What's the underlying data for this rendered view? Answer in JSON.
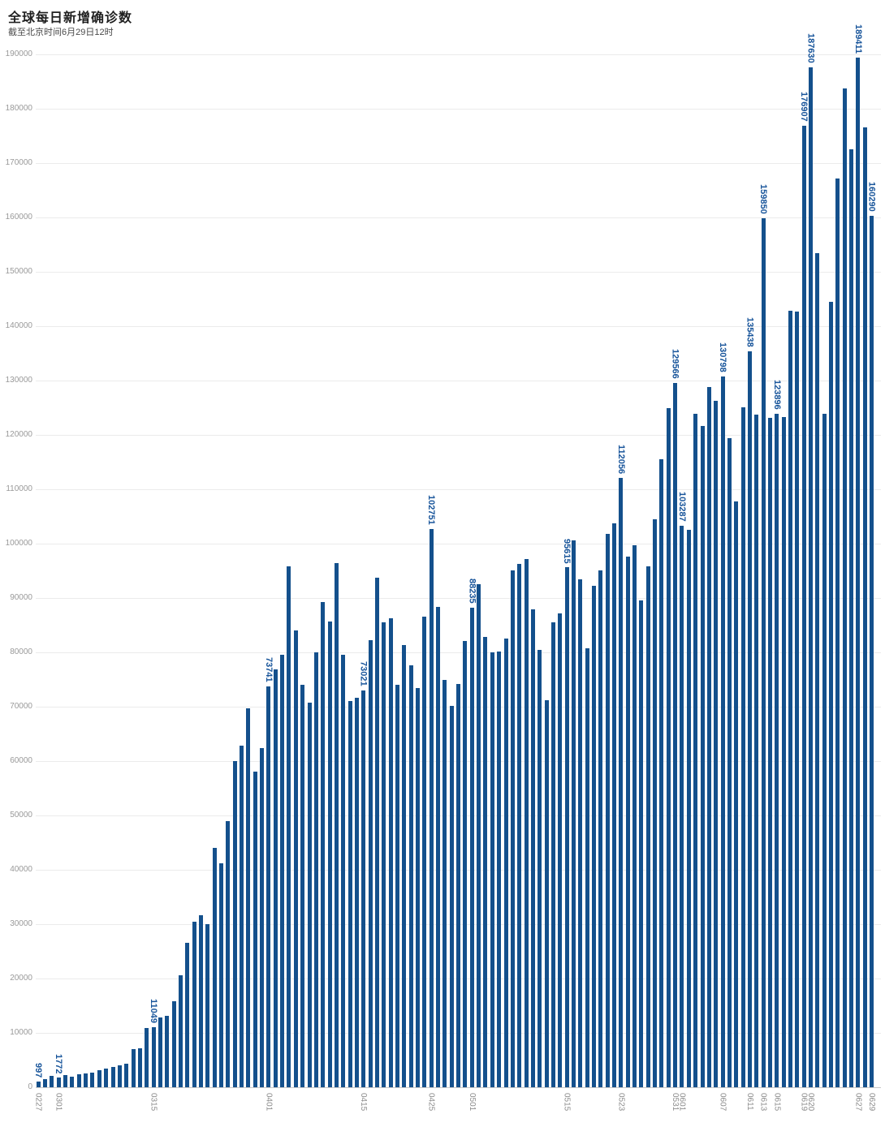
{
  "header": {
    "title": "全球每日新增确诊数",
    "subtitle": "截至北京时间6月29日12时"
  },
  "colors": {
    "bar": "#14508C",
    "value_label": "#17549A",
    "axis_text": "#999999",
    "x_tick_text": "#8C8C8C",
    "gridline": "#EBEBEB",
    "axis_line": "#C8C8C8",
    "title": "#1F1F1F",
    "subtitle": "#4A4A4A",
    "background": "#FFFFFF"
  },
  "chart_data": {
    "type": "bar",
    "title": "全球每日新增确诊数",
    "subtitle": "截至北京时间6月29日12时",
    "xlabel": "",
    "ylabel": "",
    "ylim": [
      0,
      190000
    ],
    "y_ticks": [
      0,
      10000,
      20000,
      30000,
      40000,
      50000,
      60000,
      70000,
      80000,
      90000,
      100000,
      110000,
      120000,
      130000,
      140000,
      150000,
      160000,
      170000,
      180000,
      190000
    ],
    "grid": "horizontal-only",
    "legend": "none",
    "x": [
      "0227",
      "0228",
      "0229",
      "0301",
      "0302",
      "0303",
      "0304",
      "0305",
      "0306",
      "0307",
      "0308",
      "0309",
      "0310",
      "0311",
      "0312",
      "0313",
      "0314",
      "0315",
      "0316",
      "0317",
      "0318",
      "0319",
      "0320",
      "0321",
      "0322",
      "0323",
      "0324",
      "0325",
      "0326",
      "0327",
      "0328",
      "0329",
      "0330",
      "0331",
      "0401",
      "0402",
      "0403",
      "0404",
      "0405",
      "0406",
      "0407",
      "0408",
      "0409",
      "0410",
      "0411",
      "0412",
      "0413",
      "0414",
      "0415",
      "0416",
      "0417",
      "0418",
      "0419",
      "0420",
      "0421",
      "0422",
      "0423",
      "0424",
      "0425",
      "0426",
      "0427",
      "0428",
      "0429",
      "0430",
      "0501",
      "0502",
      "0503",
      "0504",
      "0505",
      "0506",
      "0507",
      "0508",
      "0509",
      "0510",
      "0511",
      "0512",
      "0513",
      "0514",
      "0515",
      "0516",
      "0517",
      "0518",
      "0519",
      "0520",
      "0521",
      "0522",
      "0523",
      "0524",
      "0525",
      "0526",
      "0527",
      "0528",
      "0529",
      "0530",
      "0531",
      "0601",
      "0602",
      "0603",
      "0604",
      "0605",
      "0606",
      "0607",
      "0608",
      "0609",
      "0610",
      "0611",
      "0612",
      "0613",
      "0614",
      "0615",
      "0616",
      "0617",
      "0618",
      "0619",
      "0620",
      "0621",
      "0622",
      "0623",
      "0624",
      "0625",
      "0626",
      "0627",
      "0628",
      "0629"
    ],
    "values": [
      997,
      1500,
      2100,
      1772,
      2200,
      2000,
      2400,
      2600,
      2700,
      3100,
      3500,
      3700,
      4100,
      4400,
      7000,
      7200,
      10900,
      11049,
      12900,
      13100,
      15800,
      20600,
      26600,
      30400,
      31700,
      30000,
      44000,
      41200,
      48900,
      60000,
      62900,
      69700,
      58100,
      62400,
      73741,
      76900,
      79600,
      95900,
      84000,
      74100,
      70700,
      80000,
      89300,
      85700,
      96400,
      79600,
      71100,
      71700,
      73021,
      82300,
      93800,
      85600,
      86300,
      74100,
      81400,
      77600,
      73500,
      86600,
      102751,
      88300,
      74900,
      70100,
      74200,
      82100,
      88235,
      92500,
      82900,
      80000,
      80100,
      82600,
      95100,
      96300,
      97100,
      87900,
      80500,
      71200,
      85600,
      87100,
      95615,
      100600,
      93400,
      80700,
      92300,
      95100,
      101800,
      103800,
      112056,
      97600,
      99700,
      89600,
      95800,
      104500,
      115500,
      124900,
      129566,
      103287,
      102500,
      123900,
      121600,
      128800,
      126300,
      130798,
      119400,
      107700,
      125100,
      135438,
      123800,
      159850,
      123100,
      123896,
      123300,
      142900,
      142700,
      176907,
      187630,
      153500,
      123900,
      144500,
      167200,
      183800,
      172600,
      189411,
      176600,
      160290
    ],
    "annotations": [
      {
        "date": "0227",
        "value": 997
      },
      {
        "date": "0301",
        "value": 1772
      },
      {
        "date": "0315",
        "value": 11049
      },
      {
        "date": "0401",
        "value": 73741
      },
      {
        "date": "0415",
        "value": 73021
      },
      {
        "date": "0425",
        "value": 102751
      },
      {
        "date": "0501",
        "value": 88235
      },
      {
        "date": "0515",
        "value": 95615
      },
      {
        "date": "0523",
        "value": 112056
      },
      {
        "date": "0531",
        "value": 129566
      },
      {
        "date": "0601",
        "value": 103287
      },
      {
        "date": "0607",
        "value": 130798
      },
      {
        "date": "0611",
        "value": 135438
      },
      {
        "date": "0613",
        "value": 159850
      },
      {
        "date": "0615",
        "value": 123896
      },
      {
        "date": "0619",
        "value": 176907
      },
      {
        "date": "0620",
        "value": 187630
      },
      {
        "date": "0627",
        "value": 189411
      },
      {
        "date": "0629",
        "value": 160290
      }
    ],
    "x_axis_ticks": [
      "0227",
      "0301",
      "0315",
      "0401",
      "0415",
      "0425",
      "0501",
      "0515",
      "0523",
      "0531",
      "0601",
      "0607",
      "0611",
      "0613",
      "0615",
      "0619",
      "0620",
      "0627",
      "0629"
    ]
  }
}
